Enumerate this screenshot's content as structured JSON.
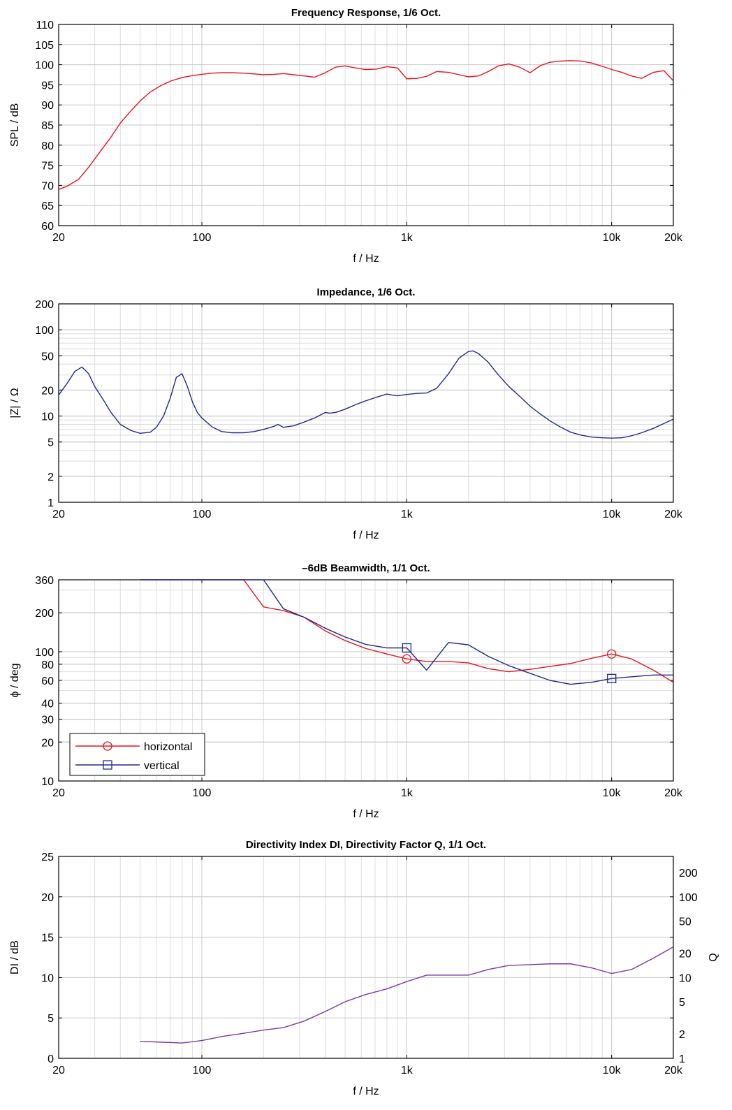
{
  "chart_data": [
    {
      "type": "line",
      "title": "Frequency Response, 1/6 Oct.",
      "xlabel": "f / Hz",
      "ylabel": "SPL / dB",
      "xscale": "log",
      "xlim": [
        20,
        20000
      ],
      "ylim": [
        60,
        110
      ],
      "xticks": [
        20,
        100,
        1000,
        10000,
        20000
      ],
      "xticklabels": [
        "20",
        "100",
        "1k",
        "10k",
        "20k"
      ],
      "yticks": [
        60,
        65,
        70,
        75,
        80,
        85,
        90,
        95,
        100,
        105,
        110
      ],
      "yticklabels": [
        "60",
        "65",
        "70",
        "75",
        "80",
        "85",
        "90",
        "95",
        "100",
        "105",
        "110"
      ],
      "grid": true,
      "series": [
        {
          "color": "#e8141c",
          "x": [
            20,
            22,
            25,
            28,
            32,
            36,
            40,
            45,
            50,
            56,
            63,
            71,
            80,
            90,
            100,
            112,
            125,
            140,
            160,
            180,
            200,
            225,
            250,
            280,
            315,
            355,
            400,
            450,
            500,
            560,
            630,
            710,
            800,
            900,
            1000,
            1120,
            1250,
            1400,
            1600,
            1800,
            2000,
            2240,
            2500,
            2800,
            3150,
            3550,
            4000,
            4500,
            5000,
            5600,
            6300,
            7100,
            8000,
            9000,
            10000,
            11200,
            12500,
            14000,
            16000,
            18000,
            20000
          ],
          "y": [
            69,
            69.8,
            71.5,
            74.5,
            78.5,
            82,
            85.5,
            88.5,
            91,
            93.2,
            94.8,
            96,
            96.8,
            97.3,
            97.6,
            97.9,
            98,
            98,
            97.9,
            97.7,
            97.5,
            97.6,
            97.8,
            97.5,
            97.2,
            96.9,
            98,
            99.4,
            99.7,
            99.2,
            98.8,
            98.9,
            99.5,
            99.2,
            96.5,
            96.6,
            97.1,
            98.3,
            98.1,
            97.5,
            97,
            97.2,
            98.3,
            99.7,
            100.2,
            99.4,
            98,
            99.8,
            100.6,
            100.9,
            101,
            100.9,
            100.4,
            99.6,
            98.8,
            98.1,
            97.2,
            96.6,
            98.1,
            98.5,
            96
          ]
        }
      ]
    },
    {
      "type": "line",
      "title": "Impedance, 1/6 Oct.",
      "xlabel": "f / Hz",
      "ylabel": "|Z| / Ω",
      "xscale": "log",
      "yscale": "log",
      "xlim": [
        20,
        20000
      ],
      "ylim": [
        1,
        200
      ],
      "xticks": [
        20,
        100,
        1000,
        10000,
        20000
      ],
      "xticklabels": [
        "20",
        "100",
        "1k",
        "10k",
        "20k"
      ],
      "yticks": [
        1,
        2,
        5,
        10,
        20,
        50,
        100,
        200
      ],
      "yticklabels": [
        "1",
        "2",
        "5",
        "10",
        "20",
        "50",
        "100",
        "200"
      ],
      "grid": true,
      "series": [
        {
          "color": "#1f2a8c",
          "x": [
            20,
            22,
            24,
            26,
            28,
            30,
            33,
            36,
            40,
            45,
            50,
            56,
            60,
            65,
            70,
            75,
            80,
            85,
            90,
            95,
            100,
            112,
            125,
            140,
            160,
            180,
            200,
            225,
            235,
            250,
            280,
            315,
            355,
            400,
            420,
            450,
            500,
            560,
            630,
            710,
            800,
            850,
            900,
            1000,
            1120,
            1250,
            1400,
            1600,
            1800,
            2000,
            2100,
            2240,
            2500,
            2800,
            3150,
            3550,
            4000,
            4500,
            5000,
            5600,
            6300,
            7100,
            8000,
            9000,
            10000,
            11200,
            12500,
            14000,
            16000,
            18000,
            20000
          ],
          "y": [
            17.5,
            24,
            33,
            37,
            31,
            22,
            15.5,
            11,
            8,
            6.8,
            6.3,
            6.5,
            7.4,
            10,
            16,
            28,
            31,
            22,
            14.5,
            11,
            9.5,
            7.5,
            6.6,
            6.4,
            6.4,
            6.6,
            7,
            7.6,
            8,
            7.4,
            7.7,
            8.5,
            9.5,
            11,
            10.8,
            11,
            12,
            13.5,
            15,
            16.5,
            18,
            17.5,
            17.2,
            17.8,
            18.3,
            18.5,
            21,
            31,
            47,
            56,
            57,
            53,
            42,
            30,
            22,
            17,
            13,
            10.5,
            8.8,
            7.5,
            6.5,
            6,
            5.7,
            5.6,
            5.55,
            5.6,
            5.9,
            6.4,
            7.2,
            8.2,
            9.2
          ]
        }
      ]
    },
    {
      "type": "line",
      "title": "–6dB Beamwidth, 1/1 Oct.",
      "xlabel": "f / Hz",
      "ylabel": "ϕ / deg",
      "xscale": "log",
      "yscale": "log",
      "xlim": [
        20,
        20000
      ],
      "ylim": [
        10,
        360
      ],
      "xticks": [
        20,
        100,
        1000,
        10000,
        20000
      ],
      "xticklabels": [
        "20",
        "100",
        "1k",
        "10k",
        "20k"
      ],
      "yticks": [
        10,
        20,
        30,
        40,
        60,
        80,
        100,
        200,
        360
      ],
      "yticklabels": [
        "10",
        "20",
        "30",
        "40",
        "60",
        "80",
        "100",
        "200",
        "360"
      ],
      "grid": true,
      "legend": "bottom-left",
      "series": [
        {
          "name": "horizontal",
          "color": "#e8141c",
          "marker": "circle",
          "marker_x": [
            1000,
            10000
          ],
          "x": [
            50,
            63,
            80,
            100,
            125,
            160,
            200,
            250,
            315,
            400,
            500,
            630,
            800,
            1000,
            1250,
            1600,
            2000,
            2500,
            3150,
            4000,
            5000,
            6300,
            8000,
            10000,
            12500,
            16000,
            20000
          ],
          "y": [
            360,
            360,
            360,
            360,
            360,
            360,
            222,
            208,
            185,
            145,
            122,
            106,
            96,
            88,
            84,
            84,
            82,
            74,
            70,
            73,
            77,
            81,
            89,
            96,
            88,
            72,
            58
          ]
        },
        {
          "name": "vertical",
          "color": "#1f2a8c",
          "marker": "square",
          "marker_x": [
            1000,
            10000
          ],
          "x": [
            50,
            63,
            80,
            100,
            125,
            160,
            200,
            250,
            315,
            400,
            500,
            630,
            800,
            1000,
            1250,
            1600,
            2000,
            2500,
            3150,
            4000,
            5000,
            6300,
            8000,
            10000,
            12500,
            16000,
            20000
          ],
          "y": [
            360,
            360,
            360,
            360,
            360,
            360,
            360,
            215,
            185,
            152,
            130,
            114,
            107,
            107,
            72,
            118,
            113,
            92,
            78,
            68,
            60,
            56,
            58,
            62,
            64,
            66,
            66
          ]
        }
      ]
    },
    {
      "type": "line",
      "title": "Directivity Index DI, Directivity Factor Q, 1/1 Oct.",
      "xlabel": "f / Hz",
      "ylabel": "DI / dB",
      "y2label": "Q",
      "xscale": "log",
      "xlim": [
        20,
        20000
      ],
      "ylim": [
        0,
        25
      ],
      "xticks": [
        20,
        100,
        1000,
        10000,
        20000
      ],
      "xticklabels": [
        "20",
        "100",
        "1k",
        "10k",
        "20k"
      ],
      "yticks": [
        0,
        5,
        10,
        15,
        20,
        25
      ],
      "yticklabels": [
        "0",
        "5",
        "10",
        "15",
        "20",
        "25"
      ],
      "y2ticks": [
        1,
        2,
        5,
        10,
        20,
        50,
        100,
        200
      ],
      "y2ticklabels": [
        "1",
        "2",
        "5",
        "10",
        "20",
        "50",
        "100",
        "200"
      ],
      "grid": true,
      "series": [
        {
          "color": "#7a3aa8",
          "x": [
            50,
            63,
            80,
            100,
            125,
            160,
            200,
            250,
            315,
            400,
            500,
            630,
            800,
            1000,
            1250,
            1600,
            2000,
            2500,
            3150,
            4000,
            5000,
            6300,
            8000,
            10000,
            12500,
            16000,
            20000
          ],
          "y": [
            2.1,
            2.0,
            1.9,
            2.2,
            2.7,
            3.1,
            3.5,
            3.8,
            4.6,
            5.8,
            7.0,
            7.9,
            8.6,
            9.5,
            10.3,
            10.3,
            10.3,
            11.0,
            11.5,
            11.6,
            11.7,
            11.7,
            11.2,
            10.5,
            11.0,
            12.4,
            13.8
          ]
        }
      ]
    }
  ]
}
